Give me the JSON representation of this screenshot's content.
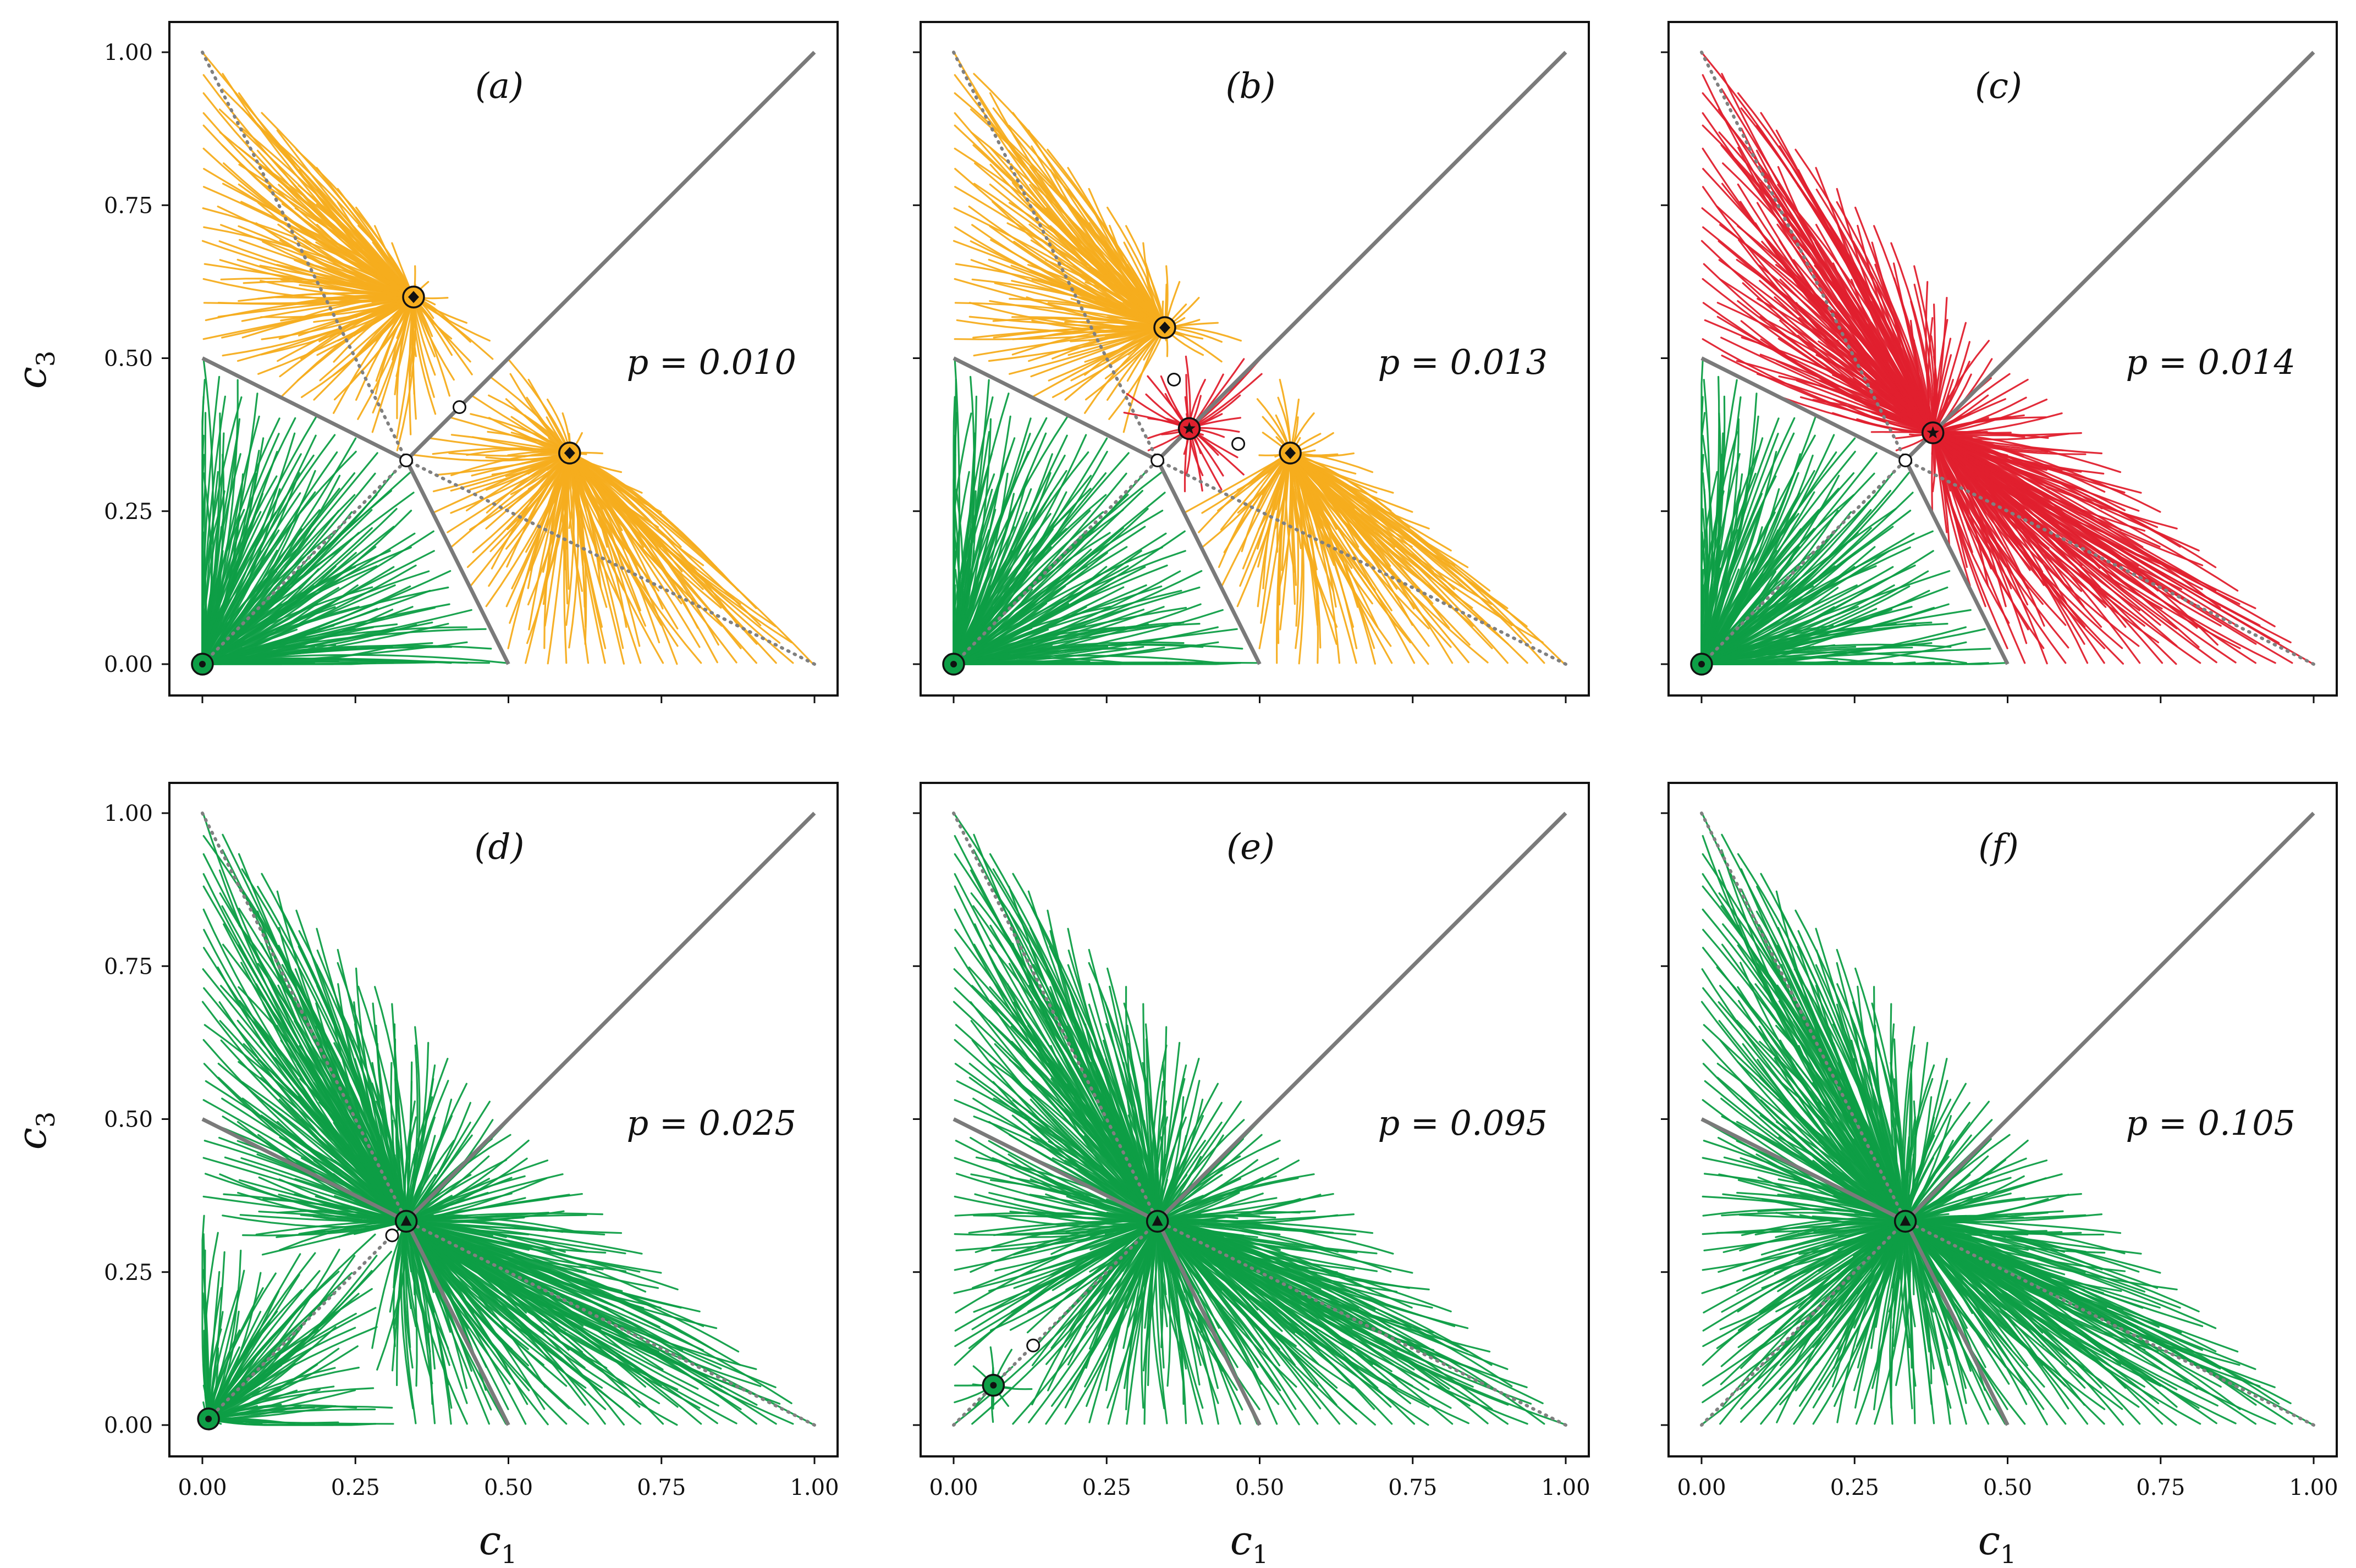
{
  "colors": {
    "yellow": "#f5ad1e",
    "red": "#e0202e",
    "green": "#0e9e46",
    "boundary": "#7a7a7a",
    "dotted": "#808080",
    "frame": "#111111"
  },
  "axes": {
    "xlabel": "c",
    "xlabel_sub": "1",
    "ylabel": "c",
    "ylabel_sub": "3",
    "xticks": [
      "0.00",
      "0.25",
      "0.50",
      "0.75",
      "1.00"
    ],
    "yticks": [
      "0.00",
      "0.25",
      "0.50",
      "0.75",
      "1.00"
    ],
    "tick_values": [
      0,
      0.25,
      0.5,
      0.75,
      1.0
    ],
    "xlim": [
      0,
      1
    ],
    "ylim": [
      0,
      1
    ]
  },
  "chart_data": [
    {
      "type": "line",
      "subtype": "phase-portrait",
      "panel": "(a)",
      "param_label": "p = 0.010",
      "p": 0.01,
      "basins": [
        {
          "color": "green",
          "attractor": [
            0.0,
            0.0
          ]
        },
        {
          "color": "yellow",
          "attractor": [
            0.345,
            0.6
          ]
        },
        {
          "color": "yellow",
          "attractor": [
            0.6,
            0.345
          ]
        }
      ],
      "stable_points": [
        {
          "x": 0.0,
          "y": 0.0,
          "marker": "dot",
          "color": "green"
        },
        {
          "x": 0.345,
          "y": 0.6,
          "marker": "diamond",
          "color": "yellow"
        },
        {
          "x": 0.6,
          "y": 0.345,
          "marker": "diamond",
          "color": "yellow"
        }
      ],
      "unstable_points": [
        [
          0.333,
          0.333
        ],
        [
          0.42,
          0.42
        ]
      ]
    },
    {
      "type": "line",
      "subtype": "phase-portrait",
      "panel": "(b)",
      "param_label": "p = 0.013",
      "p": 0.013,
      "basins": [
        {
          "color": "green",
          "attractor": [
            0.0,
            0.0
          ]
        },
        {
          "color": "yellow",
          "attractor": [
            0.345,
            0.55
          ]
        },
        {
          "color": "yellow",
          "attractor": [
            0.55,
            0.345
          ]
        },
        {
          "color": "red",
          "attractor": [
            0.385,
            0.385
          ]
        }
      ],
      "stable_points": [
        {
          "x": 0.0,
          "y": 0.0,
          "marker": "dot",
          "color": "green"
        },
        {
          "x": 0.345,
          "y": 0.55,
          "marker": "diamond",
          "color": "yellow"
        },
        {
          "x": 0.55,
          "y": 0.345,
          "marker": "diamond",
          "color": "yellow"
        },
        {
          "x": 0.385,
          "y": 0.385,
          "marker": "star",
          "color": "red"
        }
      ],
      "unstable_points": [
        [
          0.333,
          0.333
        ],
        [
          0.36,
          0.465
        ],
        [
          0.465,
          0.36
        ]
      ]
    },
    {
      "type": "line",
      "subtype": "phase-portrait",
      "panel": "(c)",
      "param_label": "p = 0.014",
      "p": 0.014,
      "basins": [
        {
          "color": "green",
          "attractor": [
            0.0,
            0.0
          ]
        },
        {
          "color": "red",
          "attractor": [
            0.378,
            0.378
          ]
        }
      ],
      "stable_points": [
        {
          "x": 0.0,
          "y": 0.0,
          "marker": "dot",
          "color": "green"
        },
        {
          "x": 0.378,
          "y": 0.378,
          "marker": "star",
          "color": "red"
        }
      ],
      "unstable_points": [
        [
          0.333,
          0.333
        ]
      ]
    },
    {
      "type": "line",
      "subtype": "phase-portrait",
      "panel": "(d)",
      "param_label": "p = 0.025",
      "p": 0.025,
      "basins": [
        {
          "color": "green",
          "attractor": [
            0.01,
            0.01
          ]
        },
        {
          "color": "green",
          "attractor": [
            0.333,
            0.333
          ]
        }
      ],
      "stable_points": [
        {
          "x": 0.01,
          "y": 0.01,
          "marker": "dot",
          "color": "green"
        },
        {
          "x": 0.333,
          "y": 0.333,
          "marker": "triangle",
          "color": "green"
        }
      ],
      "unstable_points": [
        [
          0.31,
          0.31
        ]
      ]
    },
    {
      "type": "line",
      "subtype": "phase-portrait",
      "panel": "(e)",
      "param_label": "p = 0.095",
      "p": 0.095,
      "basins": [
        {
          "color": "green",
          "attractor": [
            0.065,
            0.065
          ]
        },
        {
          "color": "green",
          "attractor": [
            0.333,
            0.333
          ]
        }
      ],
      "stable_points": [
        {
          "x": 0.065,
          "y": 0.065,
          "marker": "dot",
          "color": "green"
        },
        {
          "x": 0.333,
          "y": 0.333,
          "marker": "triangle",
          "color": "green"
        }
      ],
      "unstable_points": [
        [
          0.13,
          0.13
        ]
      ]
    },
    {
      "type": "line",
      "subtype": "phase-portrait",
      "panel": "(f)",
      "param_label": "p = 0.105",
      "p": 0.105,
      "basins": [
        {
          "color": "green",
          "attractor": [
            0.333,
            0.333
          ]
        }
      ],
      "stable_points": [
        {
          "x": 0.333,
          "y": 0.333,
          "marker": "triangle",
          "color": "green"
        }
      ],
      "unstable_points": []
    }
  ]
}
